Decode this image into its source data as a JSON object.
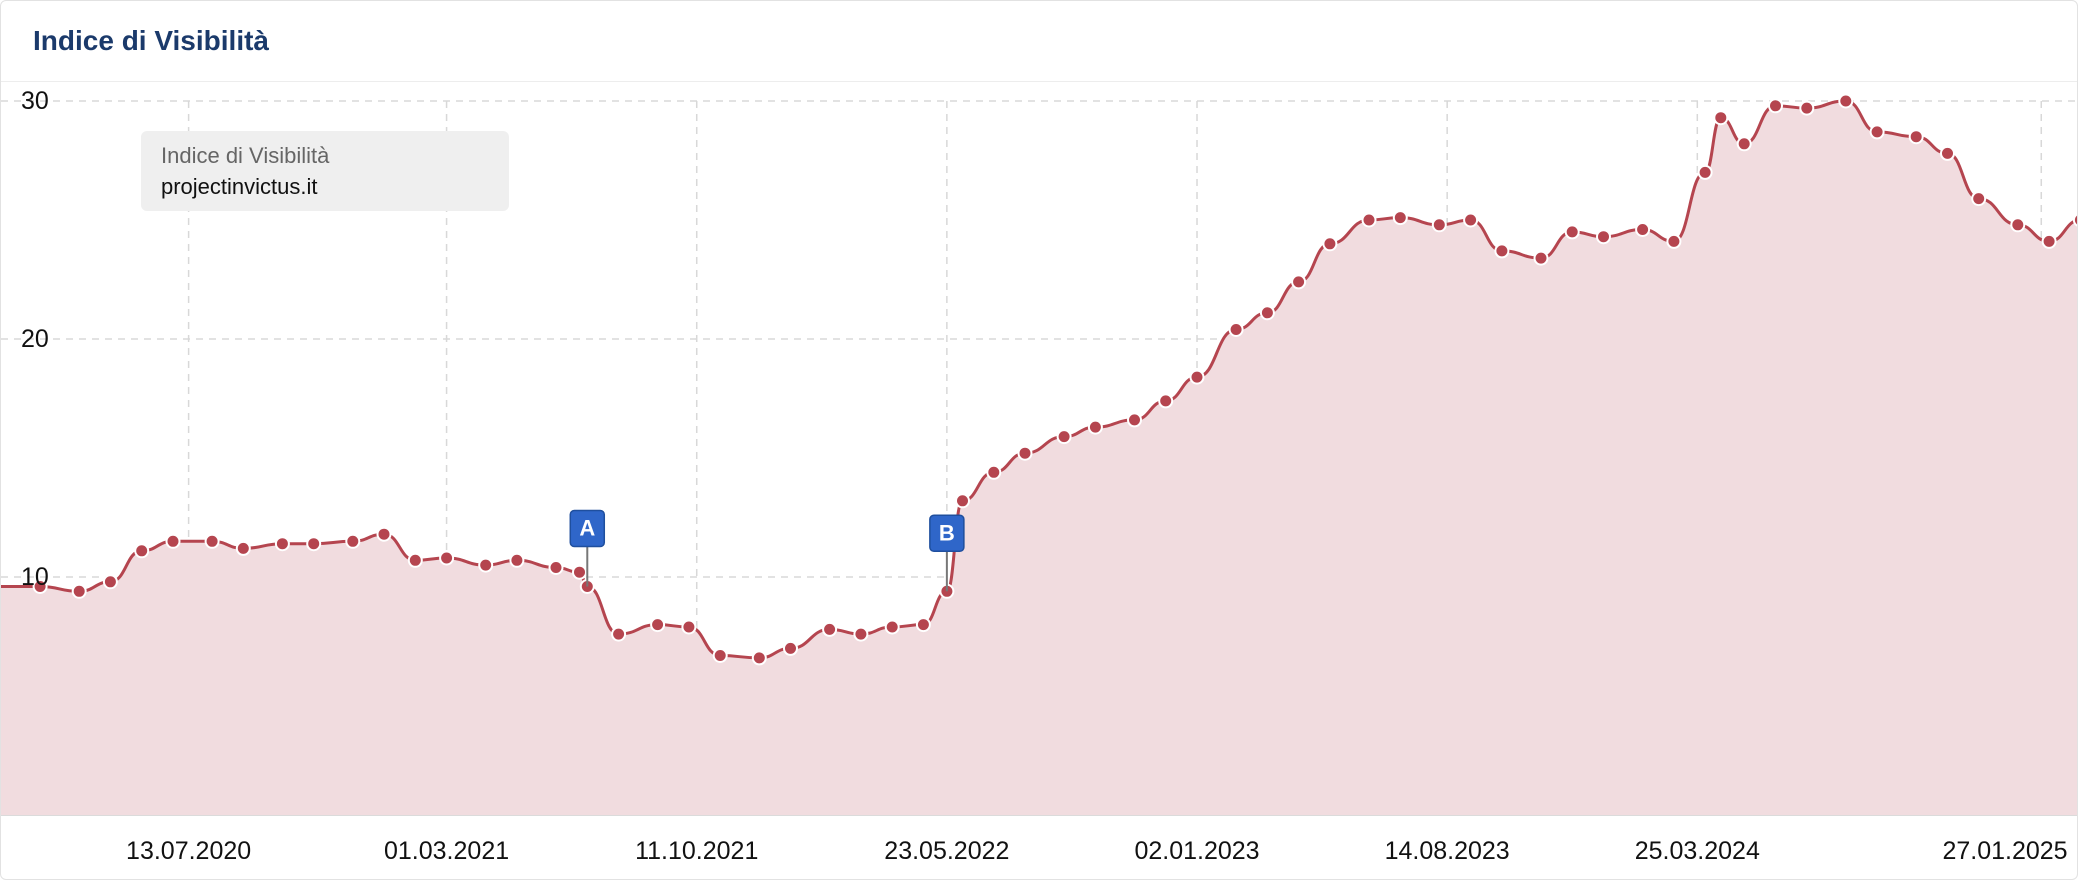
{
  "header": {
    "title": "Indice di Visibilità"
  },
  "legend": {
    "label": "Indice di Visibilità",
    "domain": "projectinvictus.it"
  },
  "colors": {
    "line": "#b5454f",
    "fill": "#f1dcdf",
    "grid": "#d8d8d8",
    "marker": "#2f66c9",
    "title": "#1b3a6b"
  },
  "chart_data": {
    "type": "area",
    "title": "Indice di Visibilità",
    "series": [
      {
        "name": "projectinvictus.it",
        "points": [
          [
            "2020-03-02",
            9.6
          ],
          [
            "2020-04-06",
            9.4
          ],
          [
            "2020-05-04",
            9.8
          ],
          [
            "2020-06-01",
            11.1
          ],
          [
            "2020-06-29",
            11.5
          ],
          [
            "2020-08-03",
            11.5
          ],
          [
            "2020-08-31",
            11.2
          ],
          [
            "2020-10-05",
            11.4
          ],
          [
            "2020-11-02",
            11.4
          ],
          [
            "2020-12-07",
            11.5
          ],
          [
            "2021-01-04",
            11.8
          ],
          [
            "2021-02-01",
            10.7
          ],
          [
            "2021-03-01",
            10.8
          ],
          [
            "2021-04-05",
            10.5
          ],
          [
            "2021-05-03",
            10.7
          ],
          [
            "2021-06-07",
            10.4
          ],
          [
            "2021-06-28",
            10.2
          ],
          [
            "2021-07-05",
            9.6
          ],
          [
            "2021-08-02",
            7.6
          ],
          [
            "2021-09-06",
            8.0
          ],
          [
            "2021-10-04",
            7.9
          ],
          [
            "2021-11-01",
            6.7
          ],
          [
            "2021-12-06",
            6.6
          ],
          [
            "2022-01-03",
            7.0
          ],
          [
            "2022-02-07",
            7.8
          ],
          [
            "2022-03-07",
            7.6
          ],
          [
            "2022-04-04",
            7.9
          ],
          [
            "2022-05-02",
            8.0
          ],
          [
            "2022-05-23",
            9.4
          ],
          [
            "2022-06-06",
            13.2
          ],
          [
            "2022-07-04",
            14.4
          ],
          [
            "2022-08-01",
            15.2
          ],
          [
            "2022-09-05",
            15.9
          ],
          [
            "2022-10-03",
            16.3
          ],
          [
            "2022-11-07",
            16.6
          ],
          [
            "2022-12-05",
            17.4
          ],
          [
            "2023-01-02",
            18.4
          ],
          [
            "2023-02-06",
            20.4
          ],
          [
            "2023-03-06",
            21.1
          ],
          [
            "2023-04-03",
            22.4
          ],
          [
            "2023-05-01",
            24.0
          ],
          [
            "2023-06-05",
            25.0
          ],
          [
            "2023-07-03",
            25.1
          ],
          [
            "2023-08-07",
            24.8
          ],
          [
            "2023-09-04",
            25.0
          ],
          [
            "2023-10-02",
            23.7
          ],
          [
            "2023-11-06",
            23.4
          ],
          [
            "2023-12-04",
            24.5
          ],
          [
            "2024-01-01",
            24.3
          ],
          [
            "2024-02-05",
            24.6
          ],
          [
            "2024-03-04",
            24.1
          ],
          [
            "2024-04-01",
            27.0
          ],
          [
            "2024-04-15",
            29.3
          ],
          [
            "2024-05-06",
            28.2
          ],
          [
            "2024-06-03",
            29.8
          ],
          [
            "2024-07-01",
            29.7
          ],
          [
            "2024-08-05",
            30.0
          ],
          [
            "2024-09-02",
            28.7
          ],
          [
            "2024-10-07",
            28.5
          ],
          [
            "2024-11-04",
            27.8
          ],
          [
            "2024-12-02",
            25.9
          ],
          [
            "2025-01-06",
            24.8
          ],
          [
            "2025-02-03",
            24.1
          ],
          [
            "2025-03-03",
            25.0
          ]
        ]
      }
    ],
    "x_ticks": [
      "13.07.2020",
      "01.03.2021",
      "11.10.2021",
      "23.05.2022",
      "02.01.2023",
      "14.08.2023",
      "25.03.2024",
      "27.01.2025"
    ],
    "y_ticks": [
      "10",
      "20",
      "30"
    ],
    "ylim": [
      0,
      30
    ],
    "xlim": [
      "2020-01-27",
      "2025-02-28"
    ],
    "events": [
      {
        "label": "A",
        "date": "2021-07-05"
      },
      {
        "label": "B",
        "date": "2022-05-23"
      }
    ],
    "grid": true,
    "legend_position": "top-left"
  }
}
